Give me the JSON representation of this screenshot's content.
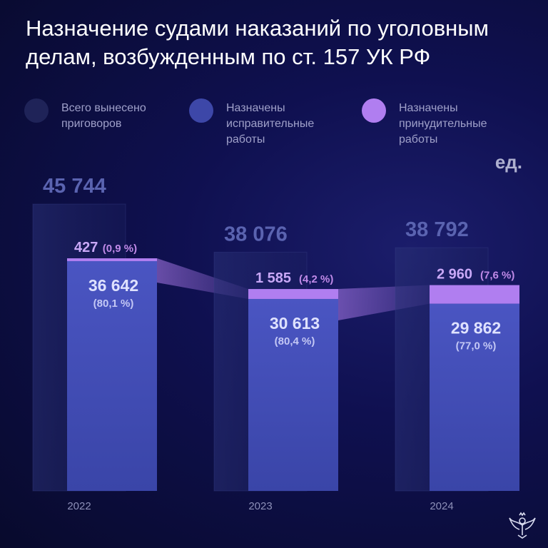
{
  "title_lines": [
    "Назначение судами наказаний по уголовным",
    "делам, возбужденным по ст. 157 УК РФ"
  ],
  "unit": "ед.",
  "legend": [
    {
      "lines": [
        "Всего вынесено",
        "приговоров"
      ],
      "color": "#1f2358"
    },
    {
      "lines": [
        "Назначены",
        "исправительные",
        "работы"
      ],
      "color": "#3d47a8"
    },
    {
      "lines": [
        "Назначены",
        "принудительные",
        "работы"
      ],
      "color": "#b07ef0"
    }
  ],
  "colors": {
    "total": "#232a6a",
    "corrective": "#4550b8",
    "forced": "#b07ef0",
    "total_label": "#5a63b0",
    "value_label": "#dfe2ff",
    "pct_label": "#c4c8f5",
    "forced_pct": "#c08ae8",
    "year_label": "#8d90b8"
  },
  "chart_data": {
    "type": "bar",
    "categories": [
      "2022",
      "2023",
      "2024"
    ],
    "series": [
      {
        "name": "Всего вынесено приговоров",
        "values": [
          45744,
          38076,
          38792
        ],
        "labels": [
          "45 744",
          "38 076",
          "38 792"
        ]
      },
      {
        "name": "Назначены исправительные работы",
        "values": [
          36642,
          30613,
          29862
        ],
        "labels": [
          "36 642",
          "30 613",
          "29 862"
        ],
        "pct_labels": [
          "(80,1 %)",
          "(80,4 %)",
          "(77,0 %)"
        ]
      },
      {
        "name": "Назначены принудительные работы",
        "values": [
          427,
          1585,
          2960
        ],
        "labels": [
          "427",
          "1 585",
          "2 960"
        ],
        "pct_labels": [
          "(0,9 %)",
          "(4,2 %)",
          "(7,6 %)"
        ]
      }
    ],
    "unit": "ед."
  }
}
